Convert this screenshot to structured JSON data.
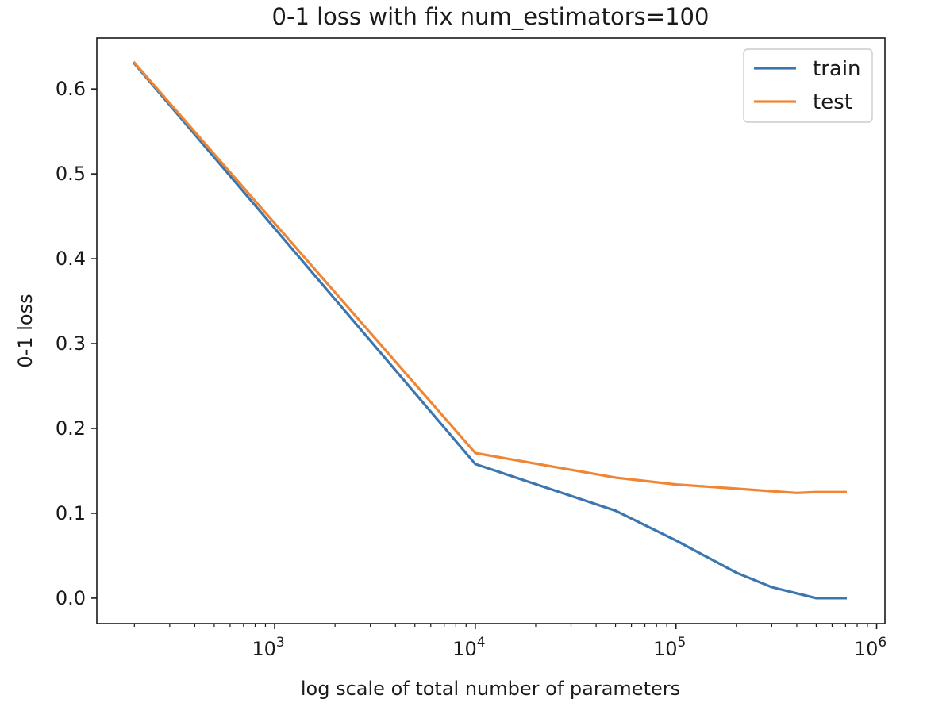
{
  "chart_data": {
    "type": "line",
    "title": "0-1 loss with fix num_estimators=100",
    "xlabel": "log scale of total number of parameters",
    "ylabel": "0-1 loss",
    "xscale": "log",
    "xlim": [
      130,
      1100000
    ],
    "ylim": [
      -0.03,
      0.66
    ],
    "x_ticks": [
      {
        "value": 1000,
        "base": "10",
        "exp": "3"
      },
      {
        "value": 10000,
        "base": "10",
        "exp": "4"
      },
      {
        "value": 100000,
        "base": "10",
        "exp": "5"
      },
      {
        "value": 1000000,
        "base": "10",
        "exp": "6"
      }
    ],
    "y_ticks": [
      {
        "value": 0.0,
        "label": "0.0"
      },
      {
        "value": 0.1,
        "label": "0.1"
      },
      {
        "value": 0.2,
        "label": "0.2"
      },
      {
        "value": 0.3,
        "label": "0.3"
      },
      {
        "value": 0.4,
        "label": "0.4"
      },
      {
        "value": 0.5,
        "label": "0.5"
      },
      {
        "value": 0.6,
        "label": "0.6"
      }
    ],
    "grid": false,
    "legend_position": "top-right",
    "series": [
      {
        "name": "train",
        "color": "#3b76af",
        "x": [
          200,
          10000,
          50000,
          100000,
          200000,
          300000,
          500000,
          700000
        ],
        "y": [
          0.63,
          0.158,
          0.103,
          0.068,
          0.03,
          0.013,
          0.0,
          0.0
        ]
      },
      {
        "name": "test",
        "color": "#ef8636",
        "x": [
          200,
          10000,
          50000,
          100000,
          200000,
          300000,
          400000,
          500000,
          700000
        ],
        "y": [
          0.631,
          0.171,
          0.142,
          0.134,
          0.129,
          0.126,
          0.124,
          0.125,
          0.125
        ]
      }
    ]
  }
}
